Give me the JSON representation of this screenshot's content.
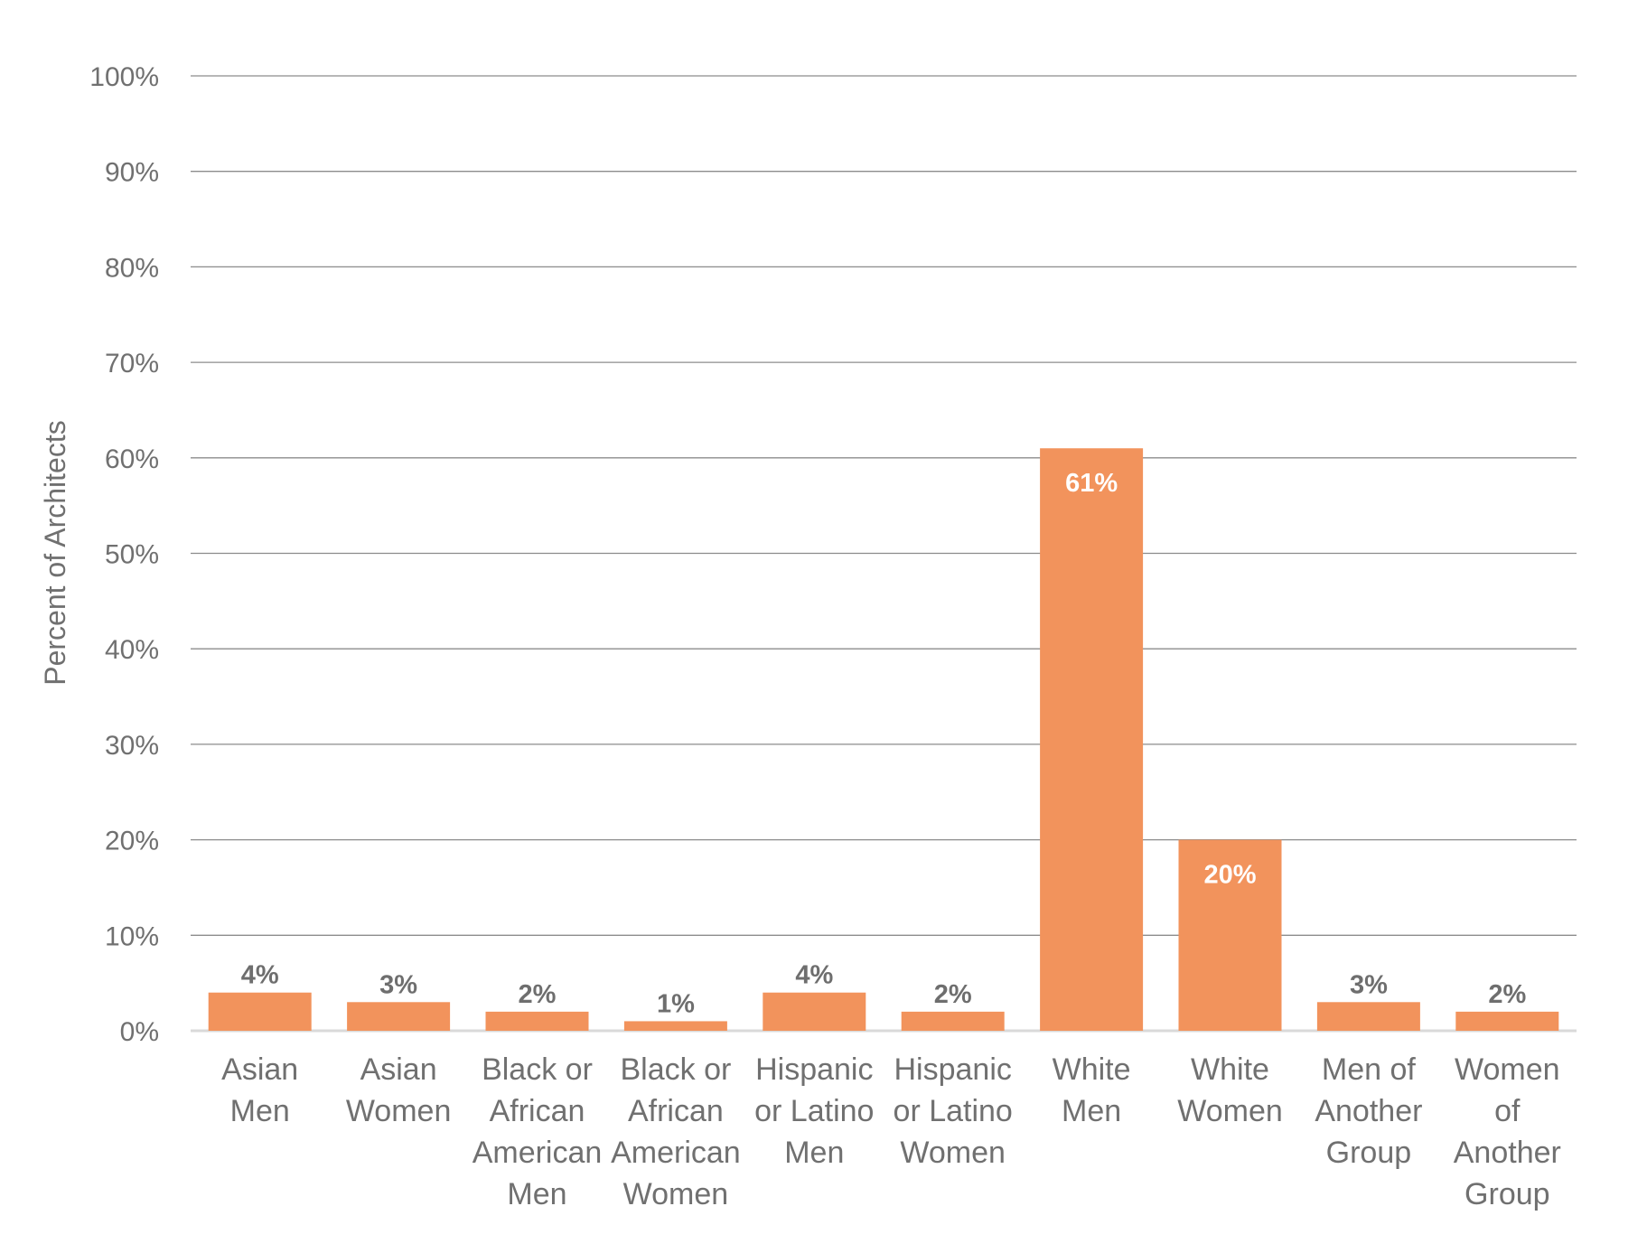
{
  "chart_data": {
    "type": "bar",
    "title": "",
    "xlabel": "",
    "ylabel": "Percent of Architects",
    "ylim": [
      0,
      100
    ],
    "yticks": [
      0,
      10,
      20,
      30,
      40,
      50,
      60,
      70,
      80,
      90,
      100
    ],
    "tick_suffix": "%",
    "grid": true,
    "legend": "none",
    "bar_color": "#f2935c",
    "grid_color": "#8c8c8c",
    "baseline_color": "#d9d9d9",
    "categories": [
      [
        "Asian",
        "Men"
      ],
      [
        "Asian",
        "Women"
      ],
      [
        "Black or",
        "African",
        "American",
        "Men"
      ],
      [
        "Black or",
        "African",
        "American",
        "Women"
      ],
      [
        "Hispanic",
        "or Latino",
        "Men"
      ],
      [
        "Hispanic",
        "or Latino",
        "Women"
      ],
      [
        "White",
        "Men"
      ],
      [
        "White",
        "Women"
      ],
      [
        "Men of",
        "Another",
        "Group"
      ],
      [
        "Women",
        "of",
        "Another",
        "Group"
      ]
    ],
    "values": [
      4,
      3,
      2,
      1,
      4,
      2,
      61,
      20,
      3,
      2
    ],
    "value_labels": [
      "4%",
      "3%",
      "2%",
      "1%",
      "4%",
      "2%",
      "61%",
      "20%",
      "3%",
      "2%"
    ]
  }
}
